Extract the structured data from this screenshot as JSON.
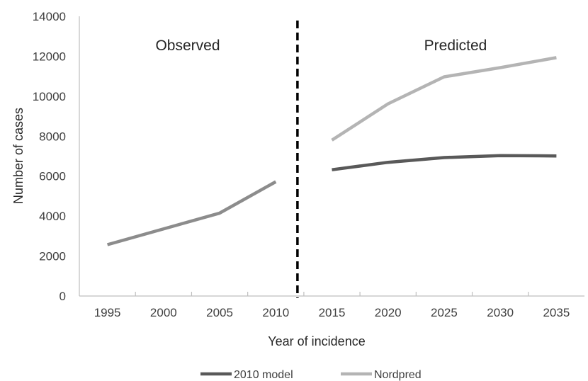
{
  "chart_data": {
    "type": "line",
    "xlabel": "Year of incidence",
    "ylabel": "Number of cases",
    "categories": [
      "1995",
      "2000",
      "2005",
      "2010",
      "2015",
      "2020",
      "2025",
      "2030",
      "2035"
    ],
    "ylim": [
      0,
      14000
    ],
    "yticks": [
      0,
      2000,
      4000,
      6000,
      8000,
      10000,
      12000,
      14000
    ],
    "grid": false,
    "legend_position": "bottom",
    "divider_between": [
      "2010",
      "2015"
    ],
    "annotations": {
      "left": "Observed",
      "right": "Predicted"
    },
    "observed": {
      "color": "#8c8c8c",
      "values": [
        2570,
        null,
        4150,
        5720,
        null,
        null,
        null,
        null,
        null
      ]
    },
    "series": [
      {
        "name": "2010 model",
        "color": "#595959",
        "values": [
          null,
          null,
          null,
          null,
          6320,
          6690,
          6930,
          7030,
          7010
        ]
      },
      {
        "name": "Nordpred",
        "color": "#b4b4b4",
        "values": [
          null,
          null,
          null,
          null,
          7800,
          9620,
          10970,
          11430,
          11930
        ]
      }
    ]
  }
}
